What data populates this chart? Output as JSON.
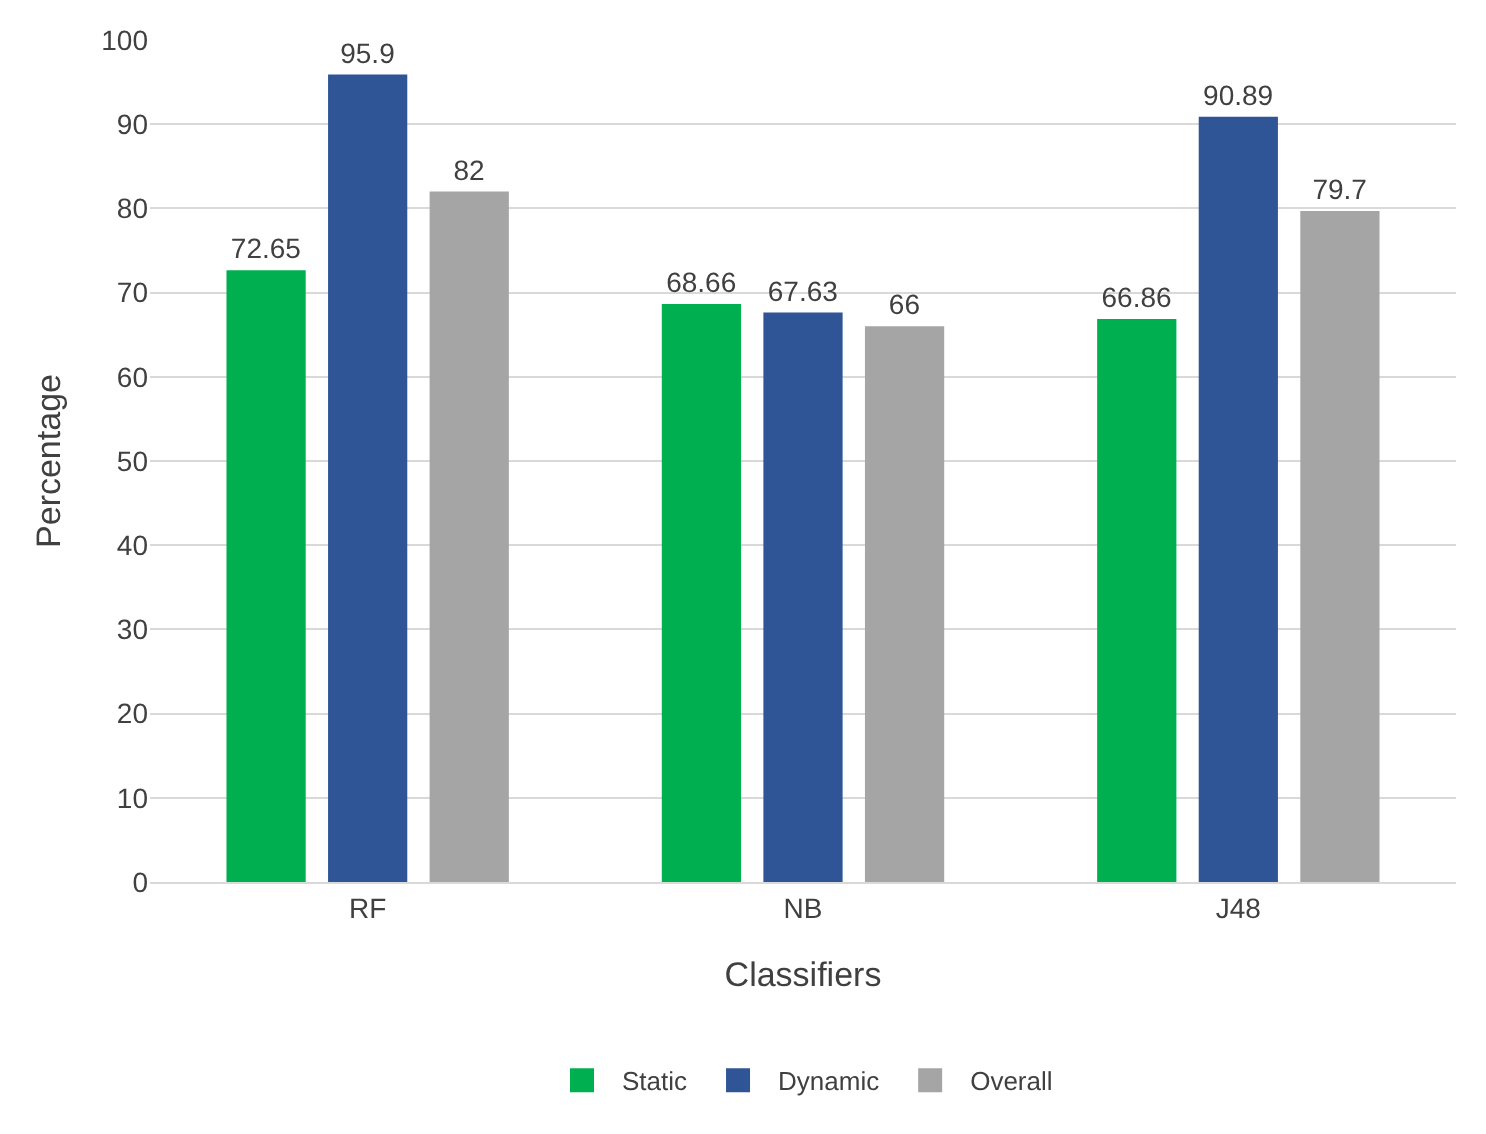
{
  "chart_data": {
    "type": "bar",
    "xlabel": "Classifiers",
    "ylabel": "Percentage",
    "categories": [
      "RF",
      "NB",
      "J48"
    ],
    "series": [
      {
        "name": "Static",
        "color": "#00b050",
        "values": [
          72.65,
          68.66,
          66.86
        ]
      },
      {
        "name": "Dynamic",
        "color": "#2f5597",
        "values": [
          95.9,
          67.63,
          90.89
        ]
      },
      {
        "name": "Overall",
        "color": "#a5a5a5",
        "values": [
          82,
          66,
          79.7
        ]
      }
    ],
    "ylim": [
      0,
      100
    ],
    "yticks": [
      0,
      10,
      20,
      30,
      40,
      50,
      60,
      70,
      80,
      90,
      100
    ],
    "grid": "y",
    "legend": "bottom",
    "data_labels": true
  }
}
